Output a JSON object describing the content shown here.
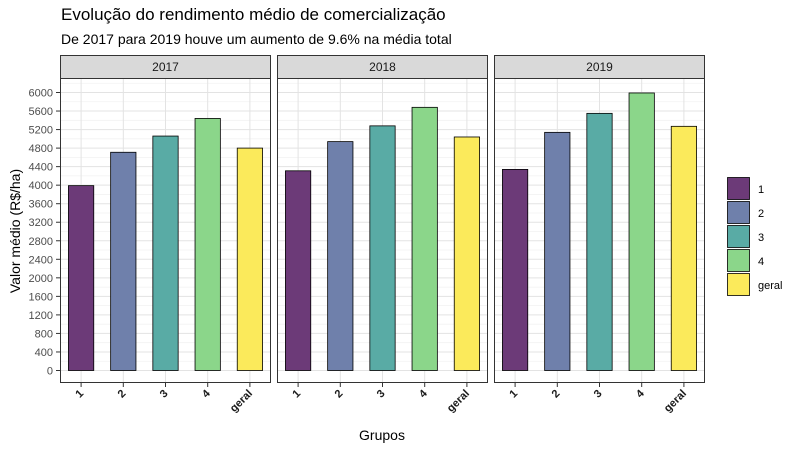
{
  "chart_data": {
    "type": "bar",
    "title": "Evolução do rendimento médio de comercialização",
    "subtitle": "De 2017 para 2019 houve um aumento de 9.6% na média total",
    "xlabel": "Grupos",
    "ylabel": "Valor médio (R$/ha)",
    "ylim": [
      0,
      6200
    ],
    "yticks": [
      0,
      400,
      800,
      1200,
      1600,
      2000,
      2400,
      2800,
      3200,
      3600,
      4000,
      4400,
      4800,
      5200,
      5600,
      6000
    ],
    "categories": [
      "1",
      "2",
      "3",
      "4",
      "geral"
    ],
    "facets": [
      {
        "name": "2017",
        "values": [
          3990,
          4710,
          5060,
          5440,
          4800
        ]
      },
      {
        "name": "2018",
        "values": [
          4310,
          4940,
          5280,
          5680,
          5040
        ]
      },
      {
        "name": "2019",
        "values": [
          4340,
          5140,
          5550,
          5990,
          5270
        ]
      }
    ],
    "colors": [
      "#6c3a78",
      "#6f80ab",
      "#59aba5",
      "#8bd68a",
      "#fbea5b"
    ],
    "legend": {
      "position": "right",
      "entries": [
        "1",
        "2",
        "3",
        "4",
        "geral"
      ]
    },
    "grid": true
  }
}
